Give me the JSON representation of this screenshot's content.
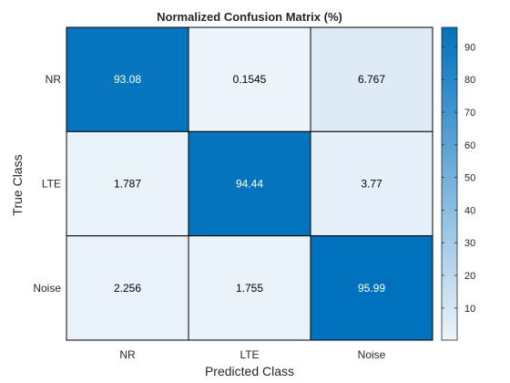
{
  "chart_data": {
    "type": "heatmap",
    "title": "Normalized Confusion Matrix (%)",
    "xlabel": "Predicted Class",
    "ylabel": "True Class",
    "x_categories": [
      "NR",
      "LTE",
      "Noise"
    ],
    "y_categories": [
      "NR",
      "LTE",
      "Noise"
    ],
    "values": [
      [
        93.08,
        0.1545,
        6.767
      ],
      [
        1.787,
        94.44,
        3.77
      ],
      [
        2.256,
        1.755,
        95.99
      ]
    ],
    "value_labels": [
      [
        "93.08",
        "0.1545",
        "6.767"
      ],
      [
        "1.787",
        "94.44",
        "3.77"
      ],
      [
        "2.256",
        "1.755",
        "95.99"
      ]
    ],
    "colorbar": {
      "range": [
        0.1545,
        95.99
      ],
      "ticks": [
        10,
        20,
        30,
        40,
        50,
        60,
        70,
        80,
        90
      ],
      "tick_labels": [
        "10",
        "20",
        "30",
        "40",
        "50",
        "60",
        "70",
        "80",
        "90"
      ]
    },
    "colors": {
      "low": "#eef4fb",
      "high": "#0072bd",
      "text_dark": "#000000",
      "text_light": "#ffffff",
      "grid": "#000000"
    }
  }
}
